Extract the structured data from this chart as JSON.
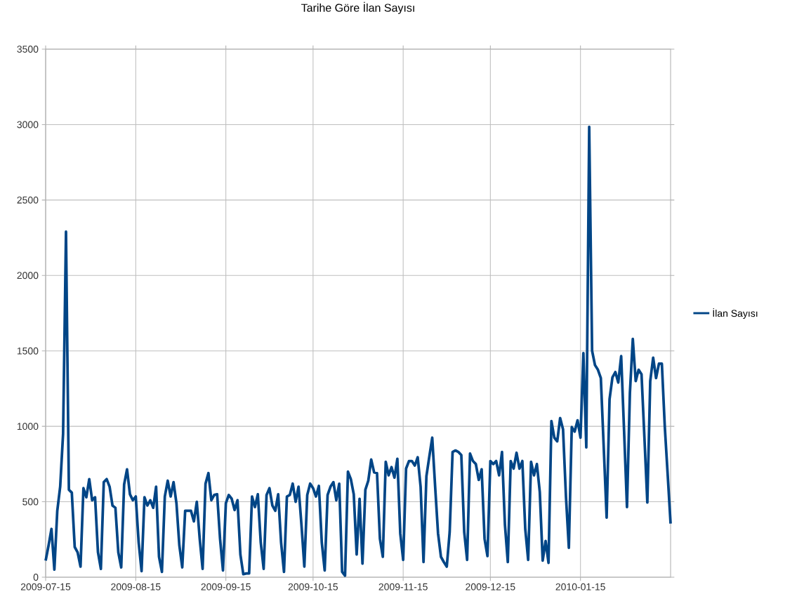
{
  "chart_data": {
    "type": "line",
    "title": "Tarihe Göre İlan Sayısı",
    "xlim": [
      "2009-07-15",
      "2010-02-15"
    ],
    "xticks": [
      "2009-07-15",
      "2009-08-15",
      "2009-09-15",
      "2009-10-15",
      "2009-11-15",
      "2009-12-15",
      "2010-01-15"
    ],
    "ylim": [
      0,
      3500
    ],
    "yticks": [
      0,
      500,
      1000,
      1500,
      2000,
      2500,
      3000,
      3500
    ],
    "grid": true,
    "legend": "right",
    "marker": "none",
    "line_style": "solid",
    "x": [
      "2009-07-15",
      "2009-07-16",
      "2009-07-17",
      "2009-07-18",
      "2009-07-19",
      "2009-07-20",
      "2009-07-21",
      "2009-07-22",
      "2009-07-23",
      "2009-07-24",
      "2009-07-25",
      "2009-07-26",
      "2009-07-27",
      "2009-07-28",
      "2009-07-29",
      "2009-07-30",
      "2009-07-31",
      "2009-08-01",
      "2009-08-02",
      "2009-08-03",
      "2009-08-04",
      "2009-08-05",
      "2009-08-06",
      "2009-08-07",
      "2009-08-08",
      "2009-08-09",
      "2009-08-10",
      "2009-08-11",
      "2009-08-12",
      "2009-08-13",
      "2009-08-14",
      "2009-08-15",
      "2009-08-16",
      "2009-08-17",
      "2009-08-18",
      "2009-08-19",
      "2009-08-20",
      "2009-08-21",
      "2009-08-22",
      "2009-08-23",
      "2009-08-24",
      "2009-08-25",
      "2009-08-26",
      "2009-08-27",
      "2009-08-28",
      "2009-08-29",
      "2009-08-30",
      "2009-08-31",
      "2009-09-01",
      "2009-09-02",
      "2009-09-03",
      "2009-09-04",
      "2009-09-05",
      "2009-09-06",
      "2009-09-07",
      "2009-09-08",
      "2009-09-09",
      "2009-09-10",
      "2009-09-11",
      "2009-09-12",
      "2009-09-13",
      "2009-09-14",
      "2009-09-15",
      "2009-09-16",
      "2009-09-17",
      "2009-09-18",
      "2009-09-19",
      "2009-09-20",
      "2009-09-21",
      "2009-09-22",
      "2009-09-23",
      "2009-09-24",
      "2009-09-25",
      "2009-09-26",
      "2009-09-27",
      "2009-09-28",
      "2009-09-29",
      "2009-09-30",
      "2009-10-01",
      "2009-10-02",
      "2009-10-03",
      "2009-10-04",
      "2009-10-05",
      "2009-10-06",
      "2009-10-07",
      "2009-10-08",
      "2009-10-09",
      "2009-10-10",
      "2009-10-11",
      "2009-10-12",
      "2009-10-13",
      "2009-10-14",
      "2009-10-15",
      "2009-10-16",
      "2009-10-17",
      "2009-10-18",
      "2009-10-19",
      "2009-10-20",
      "2009-10-21",
      "2009-10-22",
      "2009-10-23",
      "2009-10-24",
      "2009-10-25",
      "2009-10-26",
      "2009-10-27",
      "2009-10-28",
      "2009-10-29",
      "2009-10-30",
      "2009-10-31",
      "2009-11-01",
      "2009-11-02",
      "2009-11-03",
      "2009-11-04",
      "2009-11-05",
      "2009-11-06",
      "2009-11-07",
      "2009-11-08",
      "2009-11-09",
      "2009-11-10",
      "2009-11-11",
      "2009-11-12",
      "2009-11-13",
      "2009-11-14",
      "2009-11-15",
      "2009-11-16",
      "2009-11-17",
      "2009-11-18",
      "2009-11-19",
      "2009-11-20",
      "2009-11-21",
      "2009-11-22",
      "2009-11-23",
      "2009-11-24",
      "2009-11-25",
      "2009-11-26",
      "2009-11-27",
      "2009-11-28",
      "2009-11-29",
      "2009-11-30",
      "2009-12-01",
      "2009-12-02",
      "2009-12-03",
      "2009-12-04",
      "2009-12-05",
      "2009-12-06",
      "2009-12-07",
      "2009-12-08",
      "2009-12-09",
      "2009-12-10",
      "2009-12-11",
      "2009-12-12",
      "2009-12-13",
      "2009-12-14",
      "2009-12-15",
      "2009-12-16",
      "2009-12-17",
      "2009-12-18",
      "2009-12-19",
      "2009-12-20",
      "2009-12-21",
      "2009-12-22",
      "2009-12-23",
      "2009-12-24",
      "2009-12-25",
      "2009-12-26",
      "2009-12-27",
      "2009-12-28",
      "2009-12-29",
      "2009-12-30",
      "2009-12-31",
      "2010-01-01",
      "2010-01-02",
      "2010-01-03",
      "2010-01-04",
      "2010-01-05",
      "2010-01-06",
      "2010-01-07",
      "2010-01-08",
      "2010-01-09",
      "2010-01-10",
      "2010-01-11",
      "2010-01-12",
      "2010-01-13",
      "2010-01-14",
      "2010-01-15",
      "2010-01-16",
      "2010-01-17",
      "2010-01-18",
      "2010-01-19",
      "2010-01-20",
      "2010-01-21",
      "2010-01-22",
      "2010-01-23",
      "2010-01-24",
      "2010-01-25",
      "2010-01-26",
      "2010-01-27",
      "2010-01-28",
      "2010-01-29",
      "2010-01-30",
      "2010-01-31",
      "2010-02-01",
      "2010-02-02",
      "2010-02-03",
      "2010-02-04",
      "2010-02-05",
      "2010-02-06",
      "2010-02-07",
      "2010-02-08",
      "2010-02-09",
      "2010-02-10",
      "2010-02-11",
      "2010-02-12",
      "2010-02-13",
      "2010-02-14",
      "2010-02-15"
    ],
    "series": [
      {
        "name": "İlan Sayısı",
        "color": "#004586",
        "values": [
          110,
          210,
          320,
          50,
          440,
          600,
          950,
          2290,
          580,
          560,
          200,
          165,
          70,
          590,
          530,
          650,
          510,
          530,
          165,
          55,
          630,
          650,
          600,
          475,
          460,
          165,
          65,
          615,
          715,
          550,
          510,
          535,
          230,
          40,
          530,
          475,
          510,
          460,
          600,
          135,
          35,
          535,
          640,
          535,
          630,
          490,
          210,
          65,
          440,
          440,
          440,
          370,
          500,
          255,
          55,
          620,
          690,
          510,
          545,
          550,
          255,
          45,
          490,
          545,
          520,
          445,
          510,
          150,
          20,
          25,
          25,
          535,
          465,
          550,
          230,
          55,
          545,
          590,
          475,
          440,
          550,
          230,
          35,
          535,
          545,
          620,
          500,
          600,
          350,
          70,
          545,
          620,
          590,
          535,
          605,
          230,
          45,
          545,
          600,
          630,
          510,
          620,
          35,
          10,
          700,
          650,
          550,
          150,
          520,
          90,
          580,
          640,
          780,
          695,
          690,
          255,
          135,
          765,
          675,
          730,
          660,
          785,
          290,
          115,
          720,
          770,
          770,
          740,
          795,
          600,
          100,
          670,
          800,
          925,
          600,
          290,
          135,
          100,
          70,
          300,
          830,
          840,
          830,
          810,
          300,
          115,
          820,
          770,
          750,
          645,
          715,
          255,
          140,
          770,
          750,
          770,
          675,
          830,
          350,
          100,
          770,
          720,
          825,
          720,
          770,
          320,
          115,
          765,
          675,
          750,
          565,
          110,
          240,
          95,
          1035,
          925,
          900,
          1055,
          980,
          535,
          195,
          995,
          965,
          1040,
          925,
          1485,
          860,
          2985,
          1500,
          1405,
          1375,
          1320,
          860,
          395,
          1180,
          1325,
          1360,
          1290,
          1465,
          970,
          465,
          1220,
          1580,
          1300,
          1375,
          1345,
          925,
          495,
          1300,
          1455,
          1320,
          1415,
          1415,
          1000,
          680,
          355
        ]
      }
    ]
  }
}
